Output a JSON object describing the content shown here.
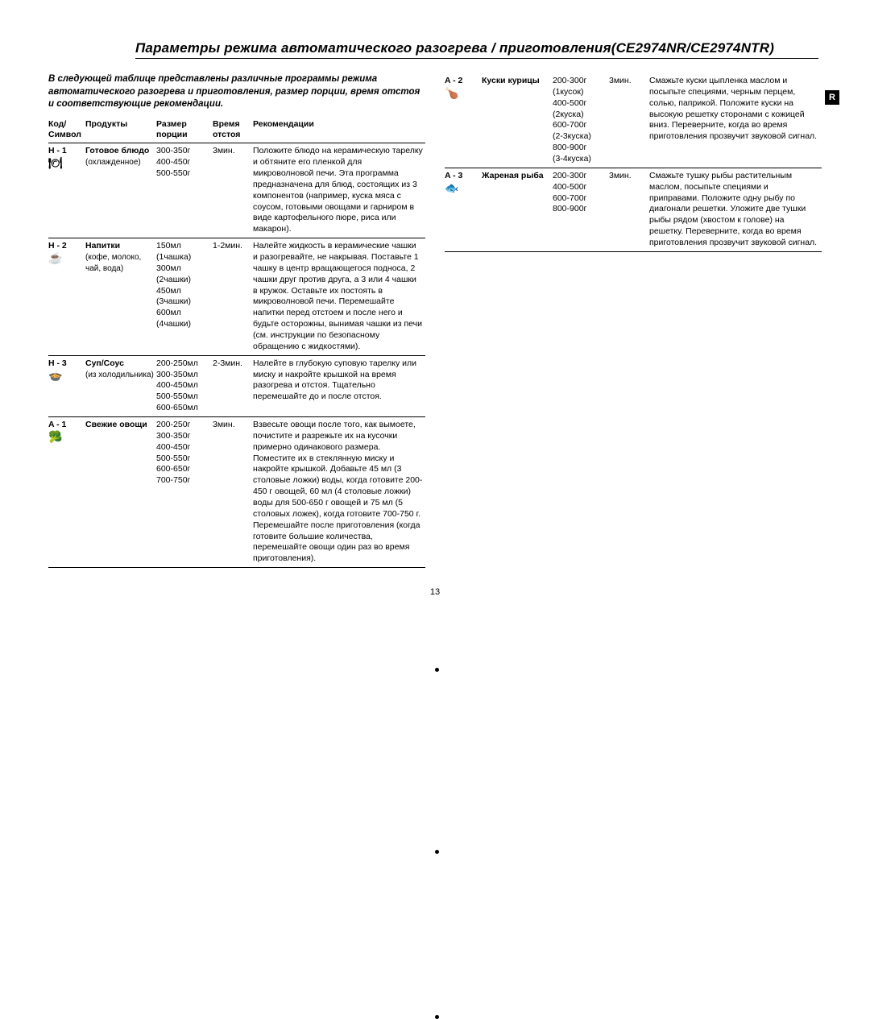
{
  "title": "Параметры режима автоматического разогрева / приготовления(CE2974NR/CE2974NTR)",
  "intro": "В следующей таблице представлены различные программы режима автоматического разогрева и приготовления, размер порции, время отстоя и соответствующие рекомендации.",
  "side_tab": "R",
  "page_number": "13",
  "headers": {
    "code": "Код/\nСимвол",
    "product": "Продукты",
    "size": "Размер\nпорции",
    "time": "Время\nотстоя",
    "rec": "Рекомендации"
  },
  "left_rows": [
    {
      "code": "H - 1",
      "symbol": "🍽",
      "product_bold": "Готовое блюдо",
      "product_rest": "(охлажденное)",
      "sizes": "300-350г\n400-450г\n500-550г",
      "time": "3мин.",
      "rec": "Положите блюдо на керамическую тарелку и обтяните его пленкой для микроволновой печи. Эта программа предназначена для блюд, состоящих из 3 компонентов (например, куска мяса с соусом, готовыми овощами и гарниром в виде картофельного пюре, риса или макарон)."
    },
    {
      "code": "H - 2",
      "symbol": "☕",
      "product_bold": "Напитки",
      "product_rest": "(кофе, молоко, чай, вода)",
      "sizes": "150мл\n(1чашка)\n300мл\n(2чашки)\n450мл\n(3чашки)\n600мл\n(4чашки)",
      "time": "1-2мин.",
      "rec": "Налейте жидкость в керамические чашки и разогревайте, не накрывая. Поставьте 1 чашку в центр вращающегося подноса, 2 чашки друг против друга, а 3 или 4 чашки в кружок. Оставьте их постоять в микроволновой печи. Перемешайте напитки перед отстоем и после него и будьте осторожны, вынимая чашки из печи (см. инструкции по безопасному обращению с жидкостями)."
    },
    {
      "code": "H - 3",
      "symbol": "🍲",
      "product_bold": "Суп/Соус",
      "product_rest": "(из холодильника)",
      "sizes": "200-250мл\n300-350мл\n400-450мл\n500-550мл\n600-650мл",
      "time": "2-3мин.",
      "rec": "Налейте в глубокую суповую тарелку или миску и накройте крышкой на время разогрева и отстоя. Тщательно перемешайте до и после отстоя."
    },
    {
      "code": "A - 1",
      "symbol": "🥦",
      "product_bold": "Свежие овощи",
      "product_rest": "",
      "sizes": "200-250г\n300-350г\n400-450г\n500-550г\n600-650г\n700-750г",
      "time": "3мин.",
      "rec": "Взвесьте овощи после того, как вымоете, почистите и разрежьте их на кусочки примерно одинакового размера. Поместите их в стеклянную миску и накройте крышкой. Добавьте 45 мл (3 столовые ложки) воды, когда готовите 200-450 г овощей, 60 мл (4 столовые ложки) воды для 500-650 г овощей и 75 мл (5 столовых ложек), когда готовите 700-750 г. Перемешайте после приготовления (когда готовите большие количества, перемешайте овощи один раз во время приготовления)."
    }
  ],
  "right_rows": [
    {
      "code": "A - 2",
      "symbol": "🍗",
      "product_bold": "Куски курицы",
      "product_rest": "",
      "sizes": "200-300г\n(1кусок)\n400-500г\n(2куска)\n600-700г\n(2-3куска)\n800-900г\n(3-4куска)",
      "time": "3мин.",
      "rec": "Смажьте куски цыпленка маслом и посыпьте специями, черным перцем, солью, паприкой. Положите куски на высокую решетку сторонами с кожицей вниз. Переверните, когда во время приготовления прозвучит звуковой сигнал."
    },
    {
      "code": "A - 3",
      "symbol": "🐟",
      "product_bold": "Жареная рыба",
      "product_rest": "",
      "sizes": "200-300г\n400-500г\n600-700г\n800-900г",
      "time": "3мин.",
      "rec": "Смажьте тушку рыбы растительным маслом, посыпьте специями и приправами. Положите одну рыбу по диагонали решетки. Уложите две тушки рыбы рядом (хвостом к голове) на решетку. Переверните, когда во время приготовления прозвучит звуковой сигнал."
    }
  ]
}
